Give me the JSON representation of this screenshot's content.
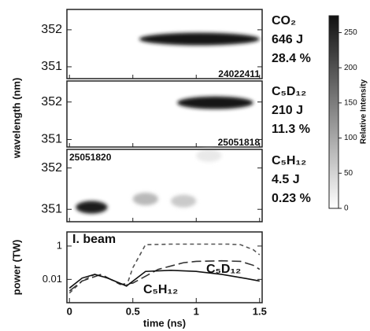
{
  "chart_data": [
    {
      "type": "spectrogram",
      "ylabel": "wavelength (nm)",
      "id_label": "24022411",
      "labels": [
        "CO₂",
        "646 J",
        "28.4 %"
      ],
      "xlim": [
        -0.02,
        1.52
      ],
      "ylim": [
        350.68,
        352.55
      ],
      "yticks": [
        351,
        352
      ],
      "spots": [
        {
          "t_start": 0.55,
          "t_end": 1.5,
          "wavelength": 351.75,
          "intensity": 270
        }
      ]
    },
    {
      "type": "spectrogram",
      "id_label": "25051818",
      "labels": [
        "C₅D₁₂",
        "210 J",
        "11.3 %"
      ],
      "xlim": [
        -0.02,
        1.52
      ],
      "ylim": [
        350.8,
        352.56
      ],
      "yticks": [
        351,
        352
      ],
      "spots": [
        {
          "t_start": 0.85,
          "t_end": 1.45,
          "wavelength": 351.98,
          "intensity": 270
        }
      ]
    },
    {
      "type": "spectrogram",
      "id_label": "25051820",
      "labels": [
        "C₅H₁₂",
        "4.5 J",
        "0.23 %"
      ],
      "xlim": [
        -0.02,
        1.52
      ],
      "ylim": [
        350.7,
        352.45
      ],
      "yticks": [
        351,
        352
      ],
      "spots": [
        {
          "t_start": 0.05,
          "t_end": 0.3,
          "wavelength": 351.05,
          "intensity": 260
        },
        {
          "t_start": 0.5,
          "t_end": 0.7,
          "wavelength": 351.25,
          "intensity": 80
        },
        {
          "t_start": 0.8,
          "t_end": 1.0,
          "wavelength": 351.2,
          "intensity": 60
        },
        {
          "t_start": 1.0,
          "t_end": 1.2,
          "wavelength": 352.3,
          "intensity": 25
        }
      ]
    },
    {
      "type": "line",
      "xlabel": "time (ns)",
      "ylabel": "power (TW)",
      "log_y": true,
      "xlim": [
        -0.02,
        1.52
      ],
      "ylim": [
        0.0004,
        7
      ],
      "xticks": [
        0,
        0.5,
        1,
        1.5
      ],
      "yticks": [
        1,
        0.01
      ],
      "series": [
        {
          "name": "I. beam",
          "color": "#555555",
          "dash": "short",
          "x": [
            0,
            0.1,
            0.2,
            0.3,
            0.45,
            0.5,
            0.6,
            0.8,
            1.0,
            1.25,
            1.35,
            1.45,
            1.5
          ],
          "values": [
            0.0015,
            0.008,
            0.02,
            0.012,
            0.004,
            0.05,
            1.2,
            1.3,
            1.3,
            1.3,
            1.2,
            0.6,
            0.3
          ]
        },
        {
          "name": "C₅D₁₂",
          "color": "#333333",
          "dash": "long",
          "x": [
            0,
            0.1,
            0.25,
            0.4,
            0.5,
            0.7,
            0.9,
            1.0,
            1.2,
            1.35,
            1.45,
            1.5
          ],
          "values": [
            0.002,
            0.008,
            0.02,
            0.005,
            0.006,
            0.04,
            0.1,
            0.12,
            0.13,
            0.12,
            0.07,
            0.04
          ]
        },
        {
          "name": "C₅H₁₂",
          "color": "#111111",
          "dash": "solid",
          "x": [
            0,
            0.1,
            0.2,
            0.3,
            0.45,
            0.6,
            0.8,
            1.0,
            1.2,
            1.4,
            1.5
          ],
          "values": [
            0.003,
            0.012,
            0.02,
            0.012,
            0.004,
            0.03,
            0.035,
            0.03,
            0.02,
            0.011,
            0.008
          ]
        }
      ]
    }
  ],
  "colorbar": {
    "label": "Relative Intensity",
    "lim": [
      0,
      274
    ],
    "ticks": [
      0,
      50,
      100,
      150,
      200,
      250
    ]
  }
}
